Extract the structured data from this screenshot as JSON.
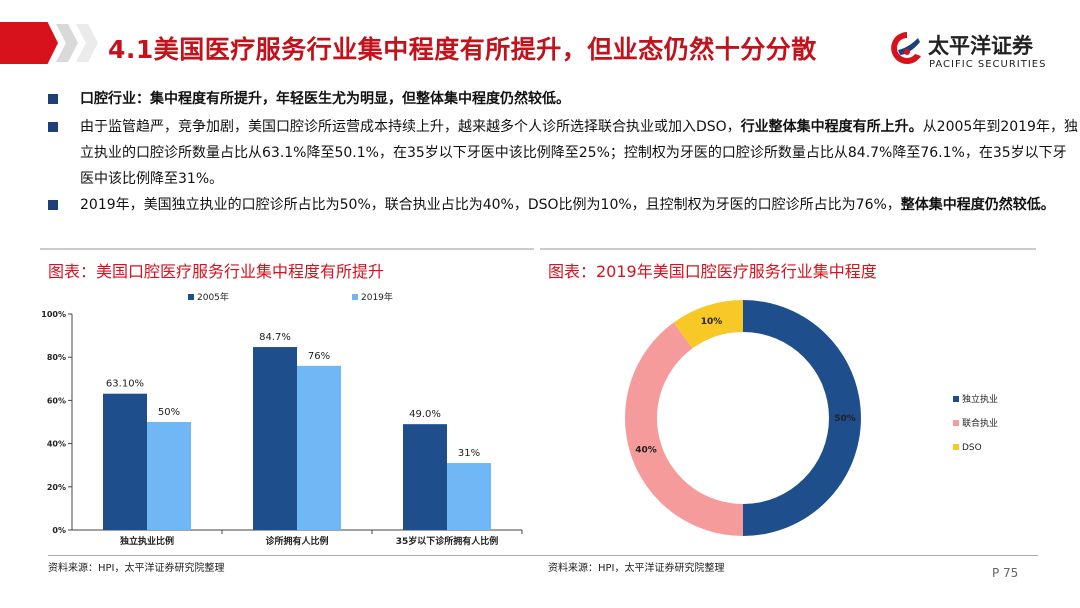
{
  "header": {
    "title": "4.1美国医疗服务行业集中程度有所提升，但业态仍然十分分散",
    "logo_name": "太平洋证券",
    "logo_en": "PACIFIC SECURITIES",
    "accent_color": "#d7121d"
  },
  "bullets": [
    {
      "bold": "口腔行业：集中程度有所提升，年轻医生尤为明显，但整体集中程度仍然较低。",
      "text": ""
    },
    {
      "text": "由于监管趋严，竞争加剧，美国口腔诊所运营成本持续上升，越来越多个人诊所选择联合执业或加入DSO，",
      "bold": "行业整体集中程度有所上升。",
      "text2": "从2005年到2019年，独立执业的口腔诊所数量占比从63.1%降至50.1%，在35岁以下牙医中该比例降至25%；控制权为牙医的口腔诊所数量占比从84.7%降至76.1%，在35岁以下牙医中该比例降至31%。"
    },
    {
      "text": "2019年，美国独立执业的口腔诊所占比为50%，联合执业占比为40%，DSO比例为10%，且控制权为牙医的口腔诊所占比为76%，",
      "bold": "整体集中程度仍然较低。"
    }
  ],
  "left_panel": {
    "title": "图表：美国口腔医疗服务行业集中程度有所提升",
    "source": "资料来源：HPI，太平洋证券研究院整理"
  },
  "right_panel": {
    "title": "图表：2019年美国口腔医疗服务行业集中程度",
    "source": "资料来源：HPI，太平洋证券研究院整理"
  },
  "page_number": "P 75",
  "chart_data": [
    {
      "type": "bar",
      "categories": [
        "独立执业比例",
        "诊所拥有人比例",
        "35岁以下诊所拥有人比例"
      ],
      "series": [
        {
          "name": "2005年",
          "values": [
            63.1,
            84.7,
            49.0
          ],
          "labels": [
            "63.10%",
            "84.7%",
            "49.0%"
          ],
          "color": "#1f4e8c"
        },
        {
          "name": "2019年",
          "values": [
            50,
            76,
            31
          ],
          "labels": [
            "50%",
            "76%",
            "31%"
          ],
          "color": "#6fb8f5"
        }
      ],
      "ylim": [
        0,
        100
      ],
      "yticks": [
        "0%",
        "20%",
        "40%",
        "60%",
        "80%",
        "100%"
      ],
      "legend": "top"
    },
    {
      "type": "pie",
      "style": "donut",
      "slices": [
        {
          "name": "独立执业",
          "value": 50,
          "label": "50%",
          "color": "#1f4e8c"
        },
        {
          "name": "联合执业",
          "value": 40,
          "label": "40%",
          "color": "#f59b9b"
        },
        {
          "name": "DSO",
          "value": 10,
          "label": "10%",
          "color": "#f8c926"
        }
      ],
      "legend": "right"
    }
  ]
}
